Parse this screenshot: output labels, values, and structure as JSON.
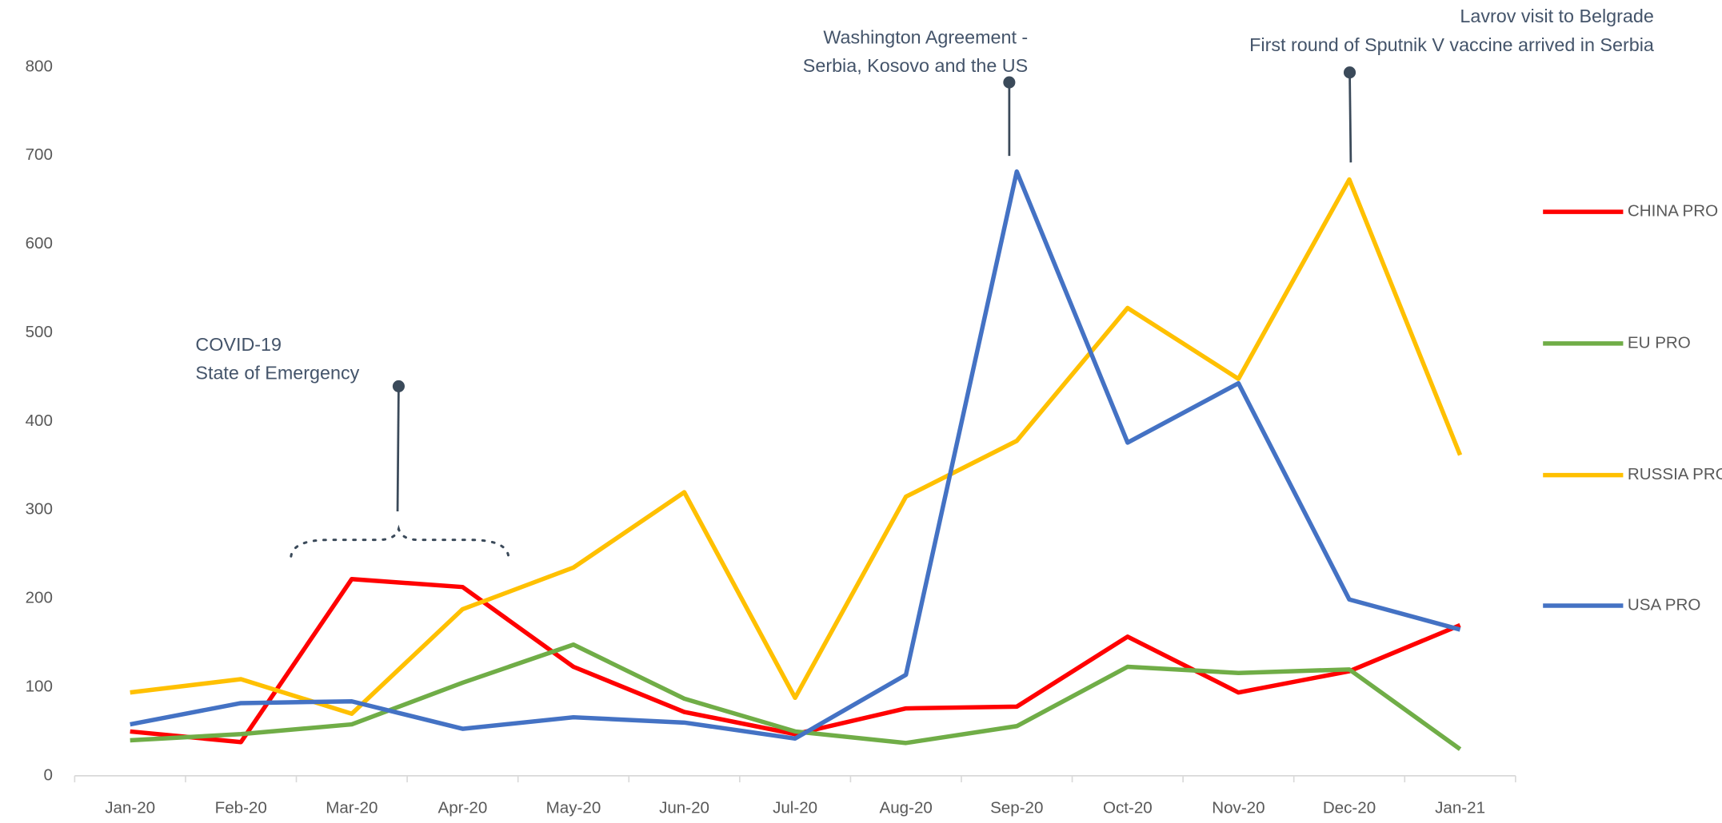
{
  "chart_data": {
    "type": "line",
    "categories": [
      "Jan-20",
      "Feb-20",
      "Mar-20",
      "Apr-20",
      "May-20",
      "Jun-20",
      "Jul-20",
      "Aug-20",
      "Sep-20",
      "Oct-20",
      "Nov-20",
      "Dec-20",
      "Jan-21"
    ],
    "series": [
      {
        "name": "CHINA PRO",
        "color": "#ff0000",
        "values": [
          50,
          38,
          222,
          213,
          123,
          72,
          47,
          76,
          78,
          157,
          94,
          118,
          170
        ]
      },
      {
        "name": "EU PRO",
        "color": "#70ad47",
        "values": [
          40,
          47,
          58,
          105,
          148,
          87,
          50,
          37,
          56,
          123,
          116,
          120,
          30
        ]
      },
      {
        "name": "RUSSIA PRO",
        "color": "#ffc000",
        "values": [
          94,
          109,
          70,
          188,
          235,
          320,
          88,
          315,
          378,
          528,
          448,
          673,
          362
        ]
      },
      {
        "name": "USA PRO",
        "color": "#4472c4",
        "values": [
          58,
          82,
          84,
          53,
          66,
          60,
          42,
          114,
          682,
          376,
          443,
          199,
          165
        ]
      }
    ],
    "ylim": [
      0,
      800
    ],
    "yticks": [
      0,
      100,
      200,
      300,
      400,
      500,
      600,
      700,
      800
    ],
    "grid": false,
    "legend": "right",
    "annotations": [
      {
        "lines": [
          "COVID-19",
          "State of Emergency"
        ]
      },
      {
        "lines": [
          "Washington Agreement -",
          "Serbia, Kosovo and the US"
        ]
      },
      {
        "lines": [
          "Lavrov visit to Belgrade",
          "First round of Sputnik V vaccine arrived in Serbia"
        ]
      }
    ]
  }
}
